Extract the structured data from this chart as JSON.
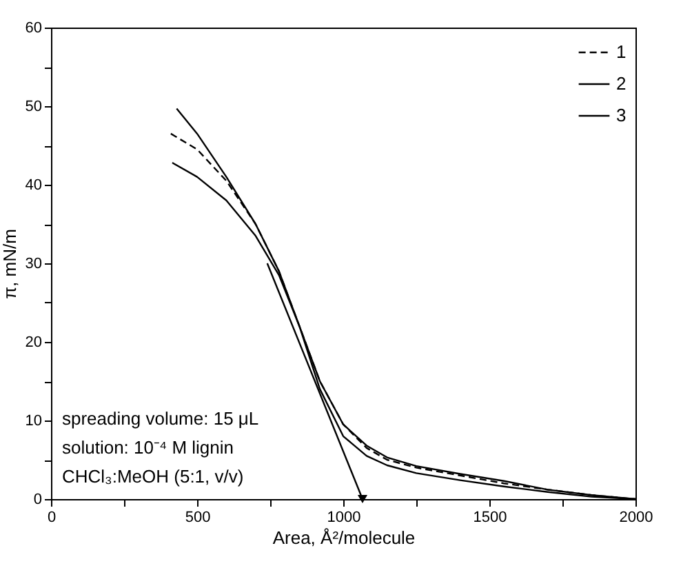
{
  "chart_data": {
    "type": "line",
    "xlabel": "Area, Å²/molecule",
    "ylabel": "π, mN/m",
    "xlim": [
      0,
      2000
    ],
    "ylim": [
      0,
      60
    ],
    "xticks": [
      0,
      {
        "value": 250,
        "label": null
      },
      500,
      {
        "value": 750,
        "label": null
      },
      1000,
      {
        "value": 1250,
        "label": null
      },
      1500,
      {
        "value": 1750,
        "label": null
      },
      2000
    ],
    "yticks": [
      0,
      {
        "value": 5,
        "label": null
      },
      10,
      {
        "value": 15,
        "label": null
      },
      20,
      {
        "value": 25,
        "label": null
      },
      30,
      {
        "value": 35,
        "label": null
      },
      40,
      {
        "value": 45,
        "label": null
      },
      50,
      {
        "value": 55,
        "label": null
      },
      60
    ],
    "grid": false,
    "legend": "top right",
    "annotations": [
      "spreading volume: 15 μL",
      "solution: 10⁻⁴ M lignin",
      "CHCl₃:MeOH (5:1, v/v)"
    ],
    "series": [
      {
        "name": "1",
        "color": "#000000",
        "line_style": "dashed",
        "x": [
          410,
          500,
          600,
          700,
          780,
          850,
          920,
          1000,
          1080,
          1150,
          1250,
          1400,
          1550,
          1700,
          1850,
          2000
        ],
        "values": [
          46.5,
          44.5,
          40.5,
          35,
          29,
          22,
          15,
          9.5,
          6.5,
          5,
          4,
          3,
          2,
          1.2,
          0.5,
          0
        ]
      },
      {
        "name": "2",
        "color": "#000000",
        "line_style": "solid",
        "x": [
          430,
          500,
          600,
          700,
          780,
          850,
          920,
          1000,
          1080,
          1150,
          1250,
          1400,
          1550,
          1700,
          1850,
          2000
        ],
        "values": [
          49.7,
          46.5,
          41,
          35,
          29,
          22,
          15,
          9.5,
          6.8,
          5.3,
          4.2,
          3.2,
          2.3,
          1.2,
          0.5,
          0
        ]
      },
      {
        "name": "3",
        "color": "#000000",
        "line_style": "solid",
        "x": [
          415,
          500,
          600,
          700,
          780,
          850,
          920,
          1000,
          1080,
          1150,
          1250,
          1400,
          1550,
          1700,
          1850,
          2000
        ],
        "values": [
          42.8,
          41,
          38,
          33.5,
          28.5,
          22,
          14,
          8,
          5.5,
          4.3,
          3.3,
          2.4,
          1.6,
          0.9,
          0.3,
          0
        ]
      },
      {
        "type": "line",
        "color": "#000000",
        "line_style": "solid",
        "x": [
          740,
          1066
        ],
        "values": [
          30,
          0
        ]
      }
    ]
  }
}
